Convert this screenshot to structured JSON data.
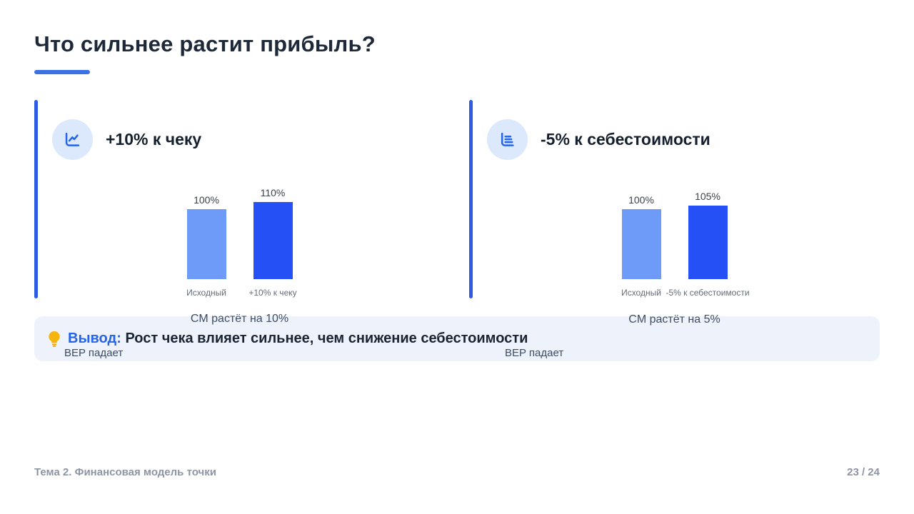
{
  "slide": {
    "title": "Что сильнее растит прибыль?",
    "conclusion": {
      "icon": "lightbulb-icon",
      "label": "Вывод:",
      "text": "Рост чека влияет сильнее, чем снижение себестоимости"
    },
    "footer": {
      "left": "Тема 2. Финансовая модель точки",
      "page": "23 / 24"
    }
  },
  "panels": [
    {
      "heading": "+10% к чеку",
      "icon": "line-chart-icon",
      "caption_line1": "CM растёт на 10%",
      "caption_line2": "BEP падает"
    },
    {
      "heading": "-5% к себестоимости",
      "icon": "bar-chart-icon",
      "caption_line1": "CM растёт на 5%",
      "caption_line2": "BEP падает"
    }
  ],
  "chart_data": [
    {
      "type": "bar",
      "categories": [
        "Исходный",
        "+10% к чеку"
      ],
      "values": [
        100,
        110
      ],
      "value_labels": [
        "100%",
        "110%"
      ],
      "bar_colors": [
        "#6F9BF8",
        "#2450F5"
      ],
      "title": "",
      "xlabel": "",
      "ylabel": "",
      "ylim": [
        0,
        110
      ],
      "grid": false,
      "legend": false
    },
    {
      "type": "bar",
      "categories": [
        "Исходный",
        "-5% к себестоимости"
      ],
      "values": [
        100,
        105
      ],
      "value_labels": [
        "100%",
        "105%"
      ],
      "bar_colors": [
        "#6F9BF8",
        "#2450F5"
      ],
      "title": "",
      "xlabel": "",
      "ylabel": "",
      "ylim": [
        0,
        110
      ],
      "grid": false,
      "legend": false
    }
  ],
  "colors": {
    "accent_blue": "#2D5BE2",
    "title_underline": "#3A72E4",
    "icon_circle_bg": "#DCE8FC",
    "icon_blue": "#2563EB",
    "bar_light": "#6F9BF8",
    "bar_dark": "#2450F5",
    "callout_bg": "#EDF2FB",
    "conclusion_label": "#2563EB",
    "footer_gray": "#8D95A5"
  }
}
